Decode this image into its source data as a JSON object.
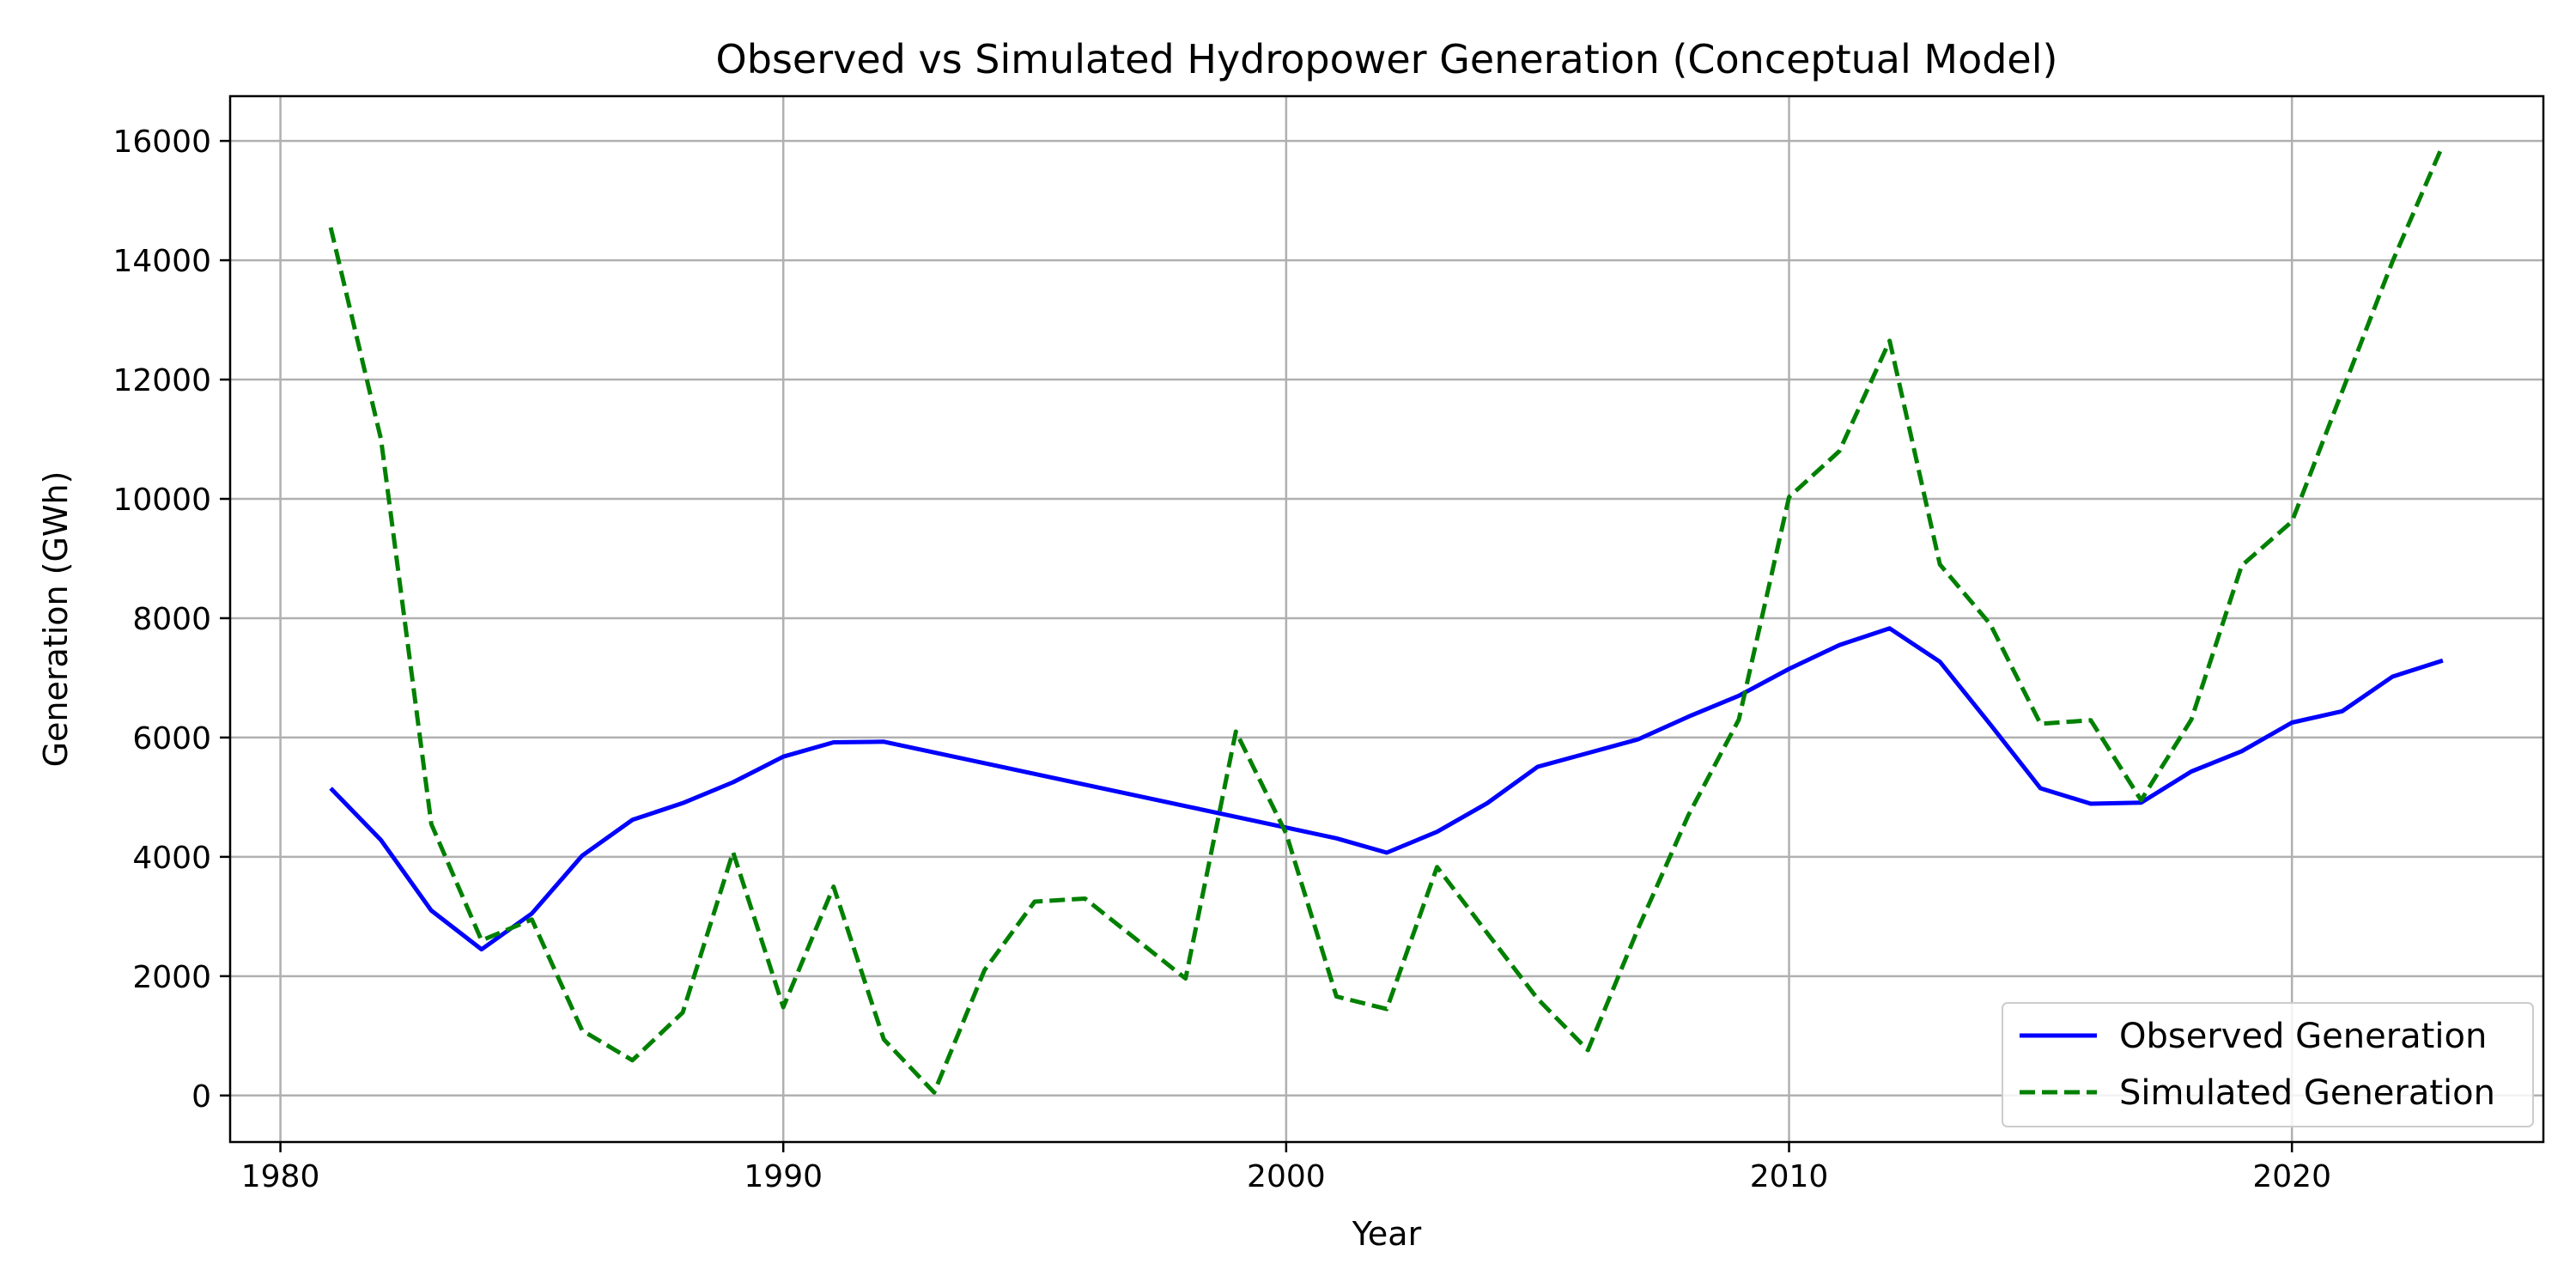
{
  "chart_data": {
    "type": "line",
    "title": "Observed vs Simulated Hydropower Generation (Conceptual Model)",
    "xlabel": "Year",
    "ylabel": "Generation (GWh)",
    "xlim": [
      1979,
      2025
    ],
    "ylim": [
      -780,
      16750
    ],
    "x_ticks": [
      1980,
      1990,
      2000,
      2010,
      2020
    ],
    "y_ticks": [
      0,
      2000,
      4000,
      6000,
      8000,
      10000,
      12000,
      14000,
      16000
    ],
    "grid": true,
    "legend_position": "lower-right",
    "x": [
      1981,
      1982,
      1983,
      1984,
      1985,
      1986,
      1987,
      1988,
      1989,
      1990,
      1991,
      1992,
      1993,
      1994,
      1995,
      1996,
      1997,
      1998,
      1999,
      2000,
      2001,
      2002,
      2003,
      2004,
      2005,
      2006,
      2007,
      2008,
      2009,
      2010,
      2011,
      2012,
      2013,
      2014,
      2015,
      2016,
      2017,
      2018,
      2019,
      2020,
      2021,
      2022,
      2023
    ],
    "series": [
      {
        "name": "Observed Generation",
        "color": "#0000ff",
        "style": "solid",
        "values": [
          5150,
          4280,
          3100,
          2450,
          3050,
          4020,
          4620,
          4900,
          5250,
          5680,
          5920,
          5930,
          5750,
          5570,
          5390,
          5210,
          5030,
          4850,
          4670,
          4490,
          4310,
          4070,
          4420,
          4900,
          5510,
          5740,
          5970,
          6350,
          6700,
          7150,
          7550,
          7830,
          7270,
          6220,
          5150,
          4890,
          4910,
          5430,
          5770,
          6250,
          6440,
          7020,
          7290
        ]
      },
      {
        "name": "Simulated Generation",
        "color": "#008000",
        "style": "dashed",
        "values": [
          14550,
          11000,
          4550,
          2600,
          2950,
          1090,
          590,
          1390,
          4080,
          1480,
          3500,
          940,
          50,
          2100,
          3250,
          3300,
          2630,
          1960,
          6100,
          4390,
          1660,
          1450,
          3830,
          2720,
          1620,
          760,
          2800,
          4700,
          6300,
          10030,
          10800,
          12650,
          8900,
          7900,
          6230,
          6290,
          4950,
          6300,
          8880,
          9620,
          11800,
          13980,
          15930
        ]
      }
    ]
  }
}
